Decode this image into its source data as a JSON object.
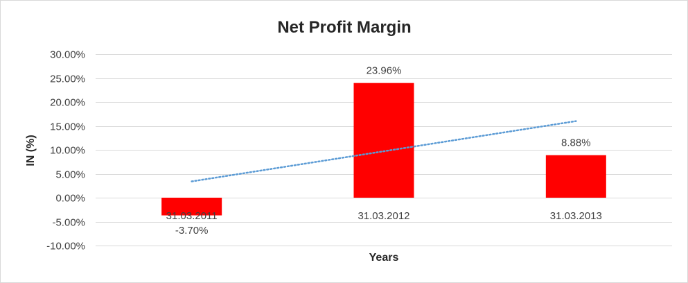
{
  "chart_data": {
    "type": "bar",
    "title": "Net Profit Margin",
    "xlabel": "Years",
    "ylabel": "IN (%)",
    "categories": [
      "31.03.2011",
      "31.03.2012",
      "31.03.2013"
    ],
    "values": [
      -3.7,
      23.96,
      8.88
    ],
    "data_labels": [
      "-3.70%",
      "23.96%",
      "8.88%"
    ],
    "ylim": [
      -10,
      30
    ],
    "ytick_values": [
      30,
      25,
      20,
      15,
      10,
      5,
      0,
      -5,
      -10
    ],
    "ytick_labels": [
      "30.00%",
      "25.00%",
      "20.00%",
      "15.00%",
      "10.00%",
      "5.00%",
      "0.00%",
      "-5.00%",
      "-10.00%"
    ],
    "grid": true,
    "bar_color": "#ff0000",
    "trendline": {
      "type": "linear",
      "style": "dotted",
      "color": "#5b9bd5",
      "y_start": 3.4,
      "y_end": 16.0
    }
  }
}
